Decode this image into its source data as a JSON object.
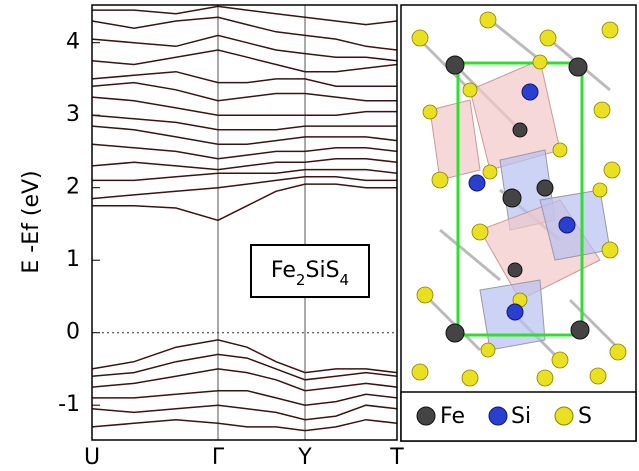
{
  "chart_data": {
    "type": "line",
    "y_label": "E -Ef (eV)",
    "annotation": "Fe2SiS4",
    "x": [
      0,
      0.42,
      0.84,
      1.26,
      1.55,
      1.84,
      2.13,
      2.44,
      2.74,
      3.05
    ],
    "xlim": [
      0,
      3.05
    ],
    "xticks": [
      {
        "value": 0,
        "label": "U"
      },
      {
        "value": 1.26,
        "label": "Γ"
      },
      {
        "value": 2.13,
        "label": "Y"
      },
      {
        "value": 3.05,
        "label": "T"
      }
    ],
    "ylim": [
      -1.48,
      4.52
    ],
    "yticks": [
      -1,
      0,
      1,
      2,
      3,
      4
    ],
    "fermi_level": 0,
    "series": [
      {
        "color": "#3a1414",
        "values": [
          1.75,
          1.75,
          1.72,
          1.55,
          1.75,
          1.95,
          2.05,
          2.05,
          2.0,
          2.0
        ]
      },
      {
        "color": "#3a1414",
        "values": [
          1.85,
          1.9,
          1.95,
          2.0,
          2.05,
          2.1,
          2.15,
          2.15,
          2.1,
          2.1
        ]
      },
      {
        "color": "#3a1414",
        "values": [
          2.1,
          2.1,
          2.15,
          2.2,
          2.2,
          2.2,
          2.25,
          2.25,
          2.25,
          2.2
        ]
      },
      {
        "color": "#3a1414",
        "values": [
          2.3,
          2.35,
          2.3,
          2.25,
          2.3,
          2.35,
          2.35,
          2.4,
          2.4,
          2.35
        ]
      },
      {
        "color": "#3a1414",
        "values": [
          2.6,
          2.55,
          2.5,
          2.4,
          2.45,
          2.5,
          2.5,
          2.55,
          2.55,
          2.5
        ]
      },
      {
        "color": "#3a1414",
        "values": [
          2.85,
          2.8,
          2.7,
          2.6,
          2.6,
          2.65,
          2.7,
          2.7,
          2.7,
          2.65
        ]
      },
      {
        "color": "#3a1414",
        "values": [
          3.0,
          2.95,
          2.9,
          2.8,
          2.8,
          2.8,
          2.85,
          2.85,
          2.85,
          2.85
        ]
      },
      {
        "color": "#3a1414",
        "values": [
          3.25,
          3.2,
          3.1,
          3.0,
          3.0,
          3.0,
          3.0,
          3.0,
          3.05,
          3.05
        ]
      },
      {
        "color": "#3a1414",
        "values": [
          3.4,
          3.45,
          3.35,
          3.2,
          3.25,
          3.3,
          3.3,
          3.25,
          3.2,
          3.2
        ]
      },
      {
        "color": "#3a1414",
        "values": [
          3.5,
          3.55,
          3.6,
          3.45,
          3.45,
          3.5,
          3.5,
          3.4,
          3.4,
          3.4
        ]
      },
      {
        "color": "#3a1414",
        "values": [
          3.75,
          3.7,
          3.8,
          3.9,
          3.8,
          3.7,
          3.6,
          3.6,
          3.65,
          3.7
        ]
      },
      {
        "color": "#3a1414",
        "values": [
          4.05,
          4.0,
          3.95,
          4.1,
          4.0,
          3.9,
          3.85,
          3.8,
          3.8,
          3.75
        ]
      },
      {
        "color": "#3a1414",
        "values": [
          4.3,
          4.2,
          4.3,
          4.35,
          4.25,
          4.15,
          4.1,
          4.05,
          3.95,
          3.9
        ]
      },
      {
        "color": "#3a1414",
        "values": [
          4.45,
          4.45,
          4.4,
          4.5,
          4.45,
          4.4,
          4.35,
          4.3,
          4.25,
          4.3
        ]
      },
      {
        "color": "#3a1414",
        "values": [
          -0.5,
          -0.4,
          -0.2,
          -0.1,
          -0.2,
          -0.4,
          -0.55,
          -0.5,
          -0.5,
          -0.55
        ]
      },
      {
        "color": "#3a1414",
        "values": [
          -0.6,
          -0.55,
          -0.4,
          -0.3,
          -0.35,
          -0.5,
          -0.65,
          -0.6,
          -0.55,
          -0.6
        ]
      },
      {
        "color": "#3a1414",
        "values": [
          -0.75,
          -0.7,
          -0.6,
          -0.5,
          -0.55,
          -0.65,
          -0.8,
          -0.75,
          -0.7,
          -0.75
        ]
      },
      {
        "color": "#3a1414",
        "values": [
          -0.9,
          -0.9,
          -0.85,
          -0.8,
          -0.8,
          -0.9,
          -1.0,
          -0.95,
          -0.85,
          -0.9
        ]
      },
      {
        "color": "#3a1414",
        "values": [
          -1.05,
          -1.1,
          -1.05,
          -1.0,
          -1.05,
          -1.1,
          -1.2,
          -1.15,
          -1.0,
          -1.05
        ]
      },
      {
        "color": "#3a1414",
        "values": [
          -1.3,
          -1.25,
          -1.2,
          -1.25,
          -1.3,
          -1.3,
          -1.35,
          -1.3,
          -1.2,
          -1.25
        ]
      }
    ]
  },
  "structure": {
    "legend": [
      "Fe",
      "Si",
      "S"
    ]
  }
}
